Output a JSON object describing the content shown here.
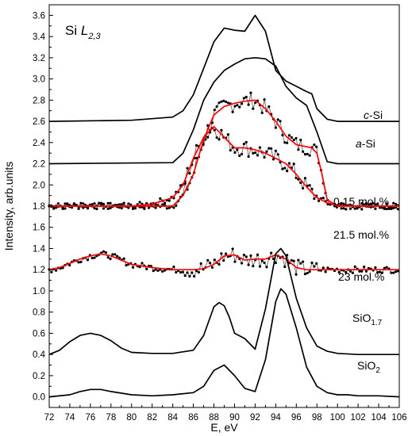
{
  "chart_data": {
    "type": "line",
    "title_main": "Si ",
    "title_italic": "L",
    "title_sub": "2,3",
    "xlabel": "E, eV",
    "ylabel": "Intensity, arb.units",
    "xlim": [
      72,
      106
    ],
    "ylim": [
      -0.1,
      3.7
    ],
    "x_ticks": [
      "72",
      "74",
      "76",
      "78",
      "80",
      "82",
      "84",
      "86",
      "88",
      "90",
      "92",
      "94",
      "96",
      "98",
      "100",
      "102",
      "104",
      "106"
    ],
    "y_ticks": [
      "0.0",
      "0.2",
      "0.4",
      "0.6",
      "0.8",
      "1.0",
      "1.2",
      "1.4",
      "1.6",
      "1.8",
      "2.0",
      "2.2",
      "2.4",
      "2.6",
      "2.8",
      "3.0",
      "3.2",
      "3.4",
      "3.6"
    ],
    "grid": false,
    "series_labels": [
      {
        "italic": "c",
        "text": "-Si"
      },
      {
        "italic": "a",
        "text": "-Si"
      },
      {
        "text": "0.15 mol.%"
      },
      {
        "text": "21.5 mol.%"
      },
      {
        "text": "23 mol.%"
      },
      {
        "text": "SiO",
        "sub": "1.7"
      },
      {
        "text": "SiO",
        "sub": "2"
      }
    ],
    "series": [
      {
        "id": "c-Si",
        "style": "line",
        "color": "#000000",
        "x": [
          72,
          80,
          84,
          85,
          86,
          87,
          88,
          89,
          90,
          91,
          92,
          93,
          94,
          95,
          96,
          97,
          97.5,
          98,
          99,
          100,
          106
        ],
        "y": [
          2.6,
          2.61,
          2.64,
          2.7,
          2.85,
          3.1,
          3.35,
          3.48,
          3.46,
          3.45,
          3.6,
          3.45,
          3.08,
          2.98,
          2.93,
          2.88,
          2.86,
          2.72,
          2.62,
          2.6,
          2.6
        ]
      },
      {
        "id": "a-Si",
        "style": "line",
        "color": "#000000",
        "x": [
          72,
          84,
          85,
          86,
          87,
          88,
          89,
          90,
          91,
          92,
          93,
          94,
          95,
          96,
          97,
          98,
          99,
          100,
          106
        ],
        "y": [
          2.2,
          2.21,
          2.3,
          2.52,
          2.8,
          2.97,
          3.08,
          3.14,
          3.19,
          3.2,
          3.19,
          3.12,
          2.93,
          2.82,
          2.75,
          2.5,
          2.22,
          2.2,
          2.2
        ]
      },
      {
        "id": "fit-0.15",
        "style": "line",
        "color": "#ff0000",
        "x": [
          72,
          84,
          85,
          86,
          87,
          88,
          89,
          90,
          91,
          92,
          93,
          94,
          95,
          96,
          97,
          97.5,
          98,
          98.5,
          99,
          100,
          106
        ],
        "y": [
          1.8,
          1.8,
          1.9,
          2.1,
          2.43,
          2.66,
          2.74,
          2.77,
          2.79,
          2.8,
          2.72,
          2.6,
          2.46,
          2.38,
          2.36,
          2.35,
          2.3,
          2.1,
          1.86,
          1.8,
          1.8
        ]
      },
      {
        "id": "fit-21.5",
        "style": "line",
        "color": "#ff0000",
        "x": [
          72,
          73,
          74,
          75,
          76,
          77,
          78,
          79,
          80,
          82,
          84,
          85,
          86,
          87,
          88,
          89,
          90,
          91,
          92,
          93,
          94,
          95,
          96,
          97,
          98,
          99,
          100,
          102,
          106
        ],
        "y": [
          1.8,
          1.8,
          1.8,
          1.8,
          1.8,
          1.8,
          1.8,
          1.8,
          1.8,
          1.82,
          1.88,
          2.0,
          2.25,
          2.45,
          2.55,
          2.45,
          2.35,
          2.35,
          2.33,
          2.3,
          2.25,
          2.2,
          2.1,
          1.98,
          1.88,
          1.83,
          1.81,
          1.8,
          1.8
        ]
      },
      {
        "id": "fit-23",
        "style": "line",
        "color": "#ff0000",
        "x": [
          72,
          73,
          74,
          75,
          76,
          77,
          78,
          79,
          80,
          82,
          84,
          85,
          86,
          87,
          88,
          89,
          90,
          91,
          92,
          93,
          94,
          95,
          96,
          97,
          98,
          99,
          100,
          102,
          106
        ],
        "y": [
          1.2,
          1.22,
          1.26,
          1.3,
          1.33,
          1.35,
          1.33,
          1.29,
          1.25,
          1.22,
          1.2,
          1.2,
          1.2,
          1.21,
          1.25,
          1.33,
          1.34,
          1.29,
          1.3,
          1.3,
          1.34,
          1.3,
          1.22,
          1.2,
          1.2,
          1.2,
          1.2,
          1.2,
          1.2
        ]
      },
      {
        "id": "SiO1.7",
        "style": "line",
        "color": "#000000",
        "x": [
          72,
          73,
          74,
          75,
          76,
          77,
          78,
          79,
          80,
          82,
          84,
          86,
          87,
          88,
          88.5,
          89,
          89.5,
          90,
          91,
          92,
          93,
          94,
          94.5,
          95,
          96,
          97,
          98,
          99,
          100,
          102,
          106
        ],
        "y": [
          0.4,
          0.44,
          0.52,
          0.58,
          0.6,
          0.58,
          0.53,
          0.46,
          0.42,
          0.41,
          0.41,
          0.44,
          0.58,
          0.85,
          0.89,
          0.86,
          0.75,
          0.6,
          0.55,
          0.45,
          0.83,
          1.35,
          1.4,
          1.33,
          0.93,
          0.65,
          0.48,
          0.43,
          0.41,
          0.4,
          0.4
        ]
      },
      {
        "id": "SiO2",
        "style": "line",
        "color": "#000000",
        "x": [
          72,
          74,
          75,
          76,
          77,
          78,
          80,
          82,
          84,
          86,
          87,
          88,
          89,
          90,
          91,
          92,
          93,
          94,
          94.5,
          95,
          96,
          97,
          98,
          99,
          100,
          101,
          102,
          104,
          106
        ],
        "y": [
          0.0,
          0.02,
          0.05,
          0.07,
          0.07,
          0.05,
          0.02,
          0.01,
          0.02,
          0.04,
          0.1,
          0.25,
          0.3,
          0.2,
          0.08,
          0.05,
          0.35,
          0.9,
          1.02,
          0.97,
          0.65,
          0.28,
          0.1,
          0.04,
          0.02,
          0.02,
          0.01,
          0.01,
          0.0
        ]
      }
    ]
  }
}
